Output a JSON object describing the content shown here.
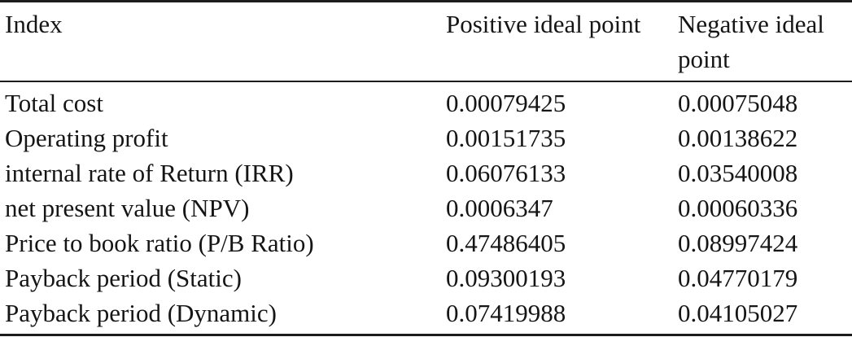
{
  "table": {
    "headers": [
      "Index",
      "Positive ideal point",
      "Negative ideal point"
    ],
    "rows": [
      [
        "Total cost",
        "0.00079425",
        "0.00075048"
      ],
      [
        "Operating profit",
        "0.00151735",
        "0.00138622"
      ],
      [
        "internal rate of Return (IRR)",
        "0.06076133",
        "0.03540008"
      ],
      [
        "net present value (NPV)",
        "0.0006347",
        "0.00060336"
      ],
      [
        "Price to book ratio (P/B Ratio)",
        "0.47486405",
        "0.08997424"
      ],
      [
        "Payback period (Static)",
        "0.09300193",
        "0.04770179"
      ],
      [
        "Payback period (Dynamic)",
        "0.07419988",
        "0.04105027"
      ]
    ]
  },
  "chart_data": {
    "type": "table",
    "columns": [
      "Index",
      "Positive ideal point",
      "Negative ideal point"
    ],
    "rows": [
      {
        "index": "Total cost",
        "positive_ideal_point": 0.00079425,
        "negative_ideal_point": 0.00075048
      },
      {
        "index": "Operating profit",
        "positive_ideal_point": 0.00151735,
        "negative_ideal_point": 0.00138622
      },
      {
        "index": "internal rate of Return (IRR)",
        "positive_ideal_point": 0.06076133,
        "negative_ideal_point": 0.03540008
      },
      {
        "index": "net present value (NPV)",
        "positive_ideal_point": 0.0006347,
        "negative_ideal_point": 0.00060336
      },
      {
        "index": "Price to book ratio (P/B Ratio)",
        "positive_ideal_point": 0.47486405,
        "negative_ideal_point": 0.08997424
      },
      {
        "index": "Payback period (Static)",
        "positive_ideal_point": 0.09300193,
        "negative_ideal_point": 0.04770179
      },
      {
        "index": "Payback period (Dynamic)",
        "positive_ideal_point": 0.07419988,
        "negative_ideal_point": 0.04105027
      }
    ]
  },
  "colors": {
    "background": "#ffffff",
    "text": "#151515",
    "rule": "#1c1c1c"
  }
}
